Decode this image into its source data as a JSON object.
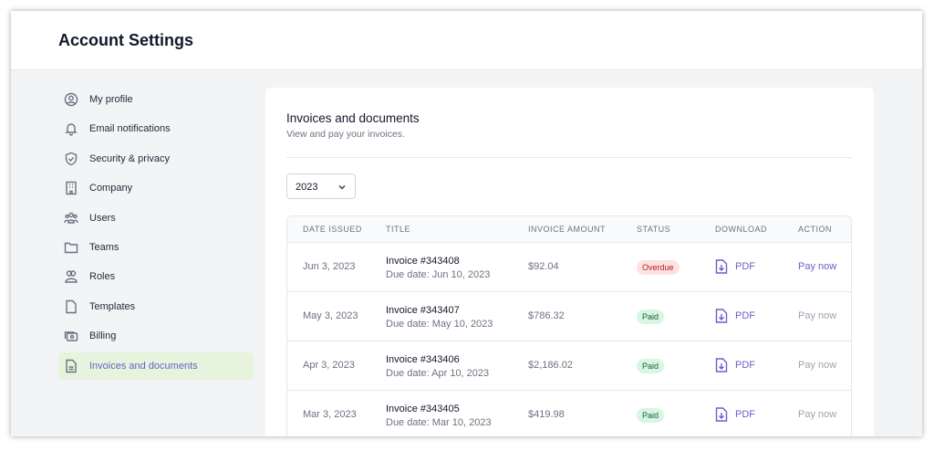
{
  "header": {
    "title": "Account Settings"
  },
  "sidebar": {
    "items": [
      {
        "label": "My profile",
        "icon": "user-circle-icon"
      },
      {
        "label": "Email notifications",
        "icon": "bell-icon"
      },
      {
        "label": "Security & privacy",
        "icon": "shield-check-icon"
      },
      {
        "label": "Company",
        "icon": "building-icon"
      },
      {
        "label": "Users",
        "icon": "users-icon"
      },
      {
        "label": "Teams",
        "icon": "folder-icon"
      },
      {
        "label": "Roles",
        "icon": "roles-icon"
      },
      {
        "label": "Templates",
        "icon": "file-icon"
      },
      {
        "label": "Billing",
        "icon": "billing-icon"
      },
      {
        "label": "Invoices and documents",
        "icon": "document-icon",
        "active": true
      }
    ]
  },
  "main": {
    "title": "Invoices and documents",
    "subtitle": "View and pay your invoices.",
    "year_select": "2023",
    "columns": [
      "DATE ISSUED",
      "TITLE",
      "INVOICE AMOUNT",
      "STATUS",
      "DOWNLOAD",
      "ACTION"
    ],
    "rows": [
      {
        "date": "Jun 3, 2023",
        "title": "Invoice #343408",
        "due": "Due date: Jun 10, 2023",
        "amount": "$92.04",
        "status": "Overdue",
        "download": "PDF",
        "action": "Pay now"
      },
      {
        "date": "May 3, 2023",
        "title": "Invoice #343407",
        "due": "Due date: May 10, 2023",
        "amount": "$786.32",
        "status": "Paid",
        "download": "PDF",
        "action": "Pay now"
      },
      {
        "date": "Apr 3, 2023",
        "title": "Invoice #343406",
        "due": "Due date: Apr 10, 2023",
        "amount": "$2,186.02",
        "status": "Paid",
        "download": "PDF",
        "action": "Pay now"
      },
      {
        "date": "Mar 3, 2023",
        "title": "Invoice #343405",
        "due": "Due date: Mar 10, 2023",
        "amount": "$419.98",
        "status": "Paid",
        "download": "PDF",
        "action": "Pay now"
      }
    ]
  },
  "colors": {
    "accent": "#6b5fc7",
    "active_bg": "#e6f4de",
    "overdue_bg": "#fde2e2",
    "overdue_text": "#b91c1c",
    "paid_bg": "#d9f5e3",
    "paid_text": "#166534"
  }
}
